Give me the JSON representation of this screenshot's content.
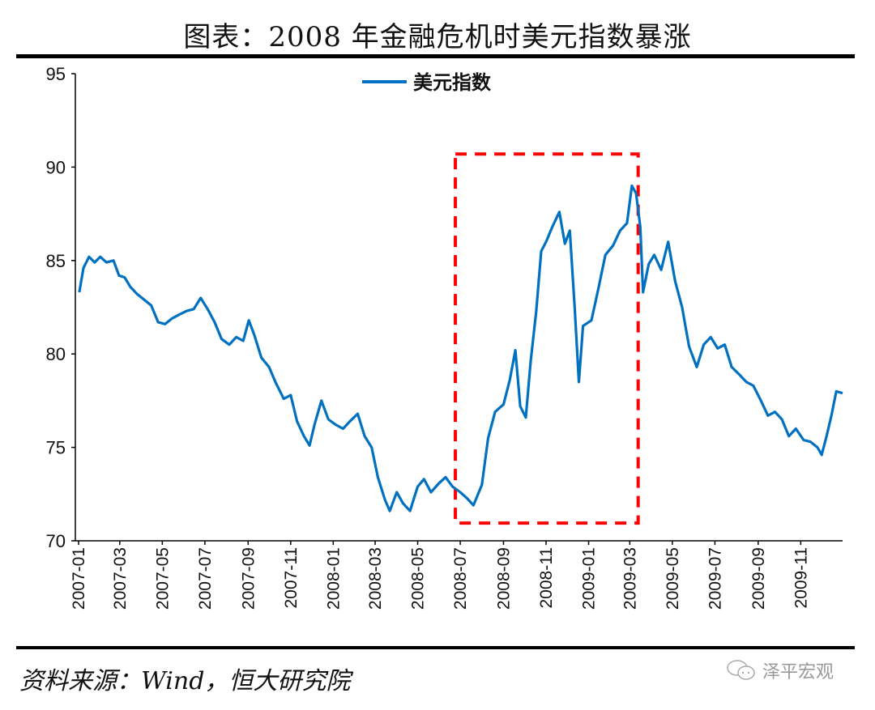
{
  "title": "图表：2008 年金融危机时美元指数暴涨",
  "source": "资料来源：Wind，恒大研究院",
  "watermark": "泽平宏观",
  "chart_data": {
    "type": "line",
    "title": "图表：2008 年金融危机时美元指数暴涨",
    "xlabel": "",
    "ylabel": "",
    "ylim": [
      70,
      95
    ],
    "yticks": [
      "70",
      "75",
      "80",
      "85",
      "90",
      "95"
    ],
    "xlim": [
      "2007-01-01",
      "2009-12-31"
    ],
    "xticks": [
      "2007-01",
      "2007-03",
      "2007-05",
      "2007-07",
      "2007-09",
      "2007-11",
      "2008-01",
      "2008-03",
      "2008-05",
      "2008-07",
      "2008-09",
      "2008-11",
      "2009-01",
      "2009-03",
      "2009-05",
      "2009-07",
      "2009-09",
      "2009-11"
    ],
    "grid": false,
    "legend_placement": "top-center",
    "colors": {
      "series": "#0070C0",
      "highlight_box": "#FF0000"
    },
    "highlight_box": {
      "x": [
        "2008-06-24",
        "2009-03-13"
      ],
      "y": [
        70.95,
        90.7
      ],
      "style": "dashed"
    },
    "series": [
      {
        "name": "美元指数",
        "points": [
          [
            "2007-01-02",
            83.3
          ],
          [
            "2007-01-08",
            84.6
          ],
          [
            "2007-01-16",
            85.2
          ],
          [
            "2007-01-24",
            84.9
          ],
          [
            "2007-02-01",
            85.2
          ],
          [
            "2007-02-10",
            84.9
          ],
          [
            "2007-02-20",
            85.0
          ],
          [
            "2007-02-28",
            84.2
          ],
          [
            "2007-03-08",
            84.1
          ],
          [
            "2007-03-16",
            83.6
          ],
          [
            "2007-03-26",
            83.2
          ],
          [
            "2007-04-05",
            82.9
          ],
          [
            "2007-04-15",
            82.6
          ],
          [
            "2007-04-25",
            81.7
          ],
          [
            "2007-05-05",
            81.6
          ],
          [
            "2007-05-15",
            81.9
          ],
          [
            "2007-05-25",
            82.1
          ],
          [
            "2007-06-05",
            82.3
          ],
          [
            "2007-06-15",
            82.4
          ],
          [
            "2007-06-25",
            83.0
          ],
          [
            "2007-07-05",
            82.4
          ],
          [
            "2007-07-15",
            81.7
          ],
          [
            "2007-07-25",
            80.8
          ],
          [
            "2007-08-05",
            80.5
          ],
          [
            "2007-08-15",
            80.9
          ],
          [
            "2007-08-25",
            80.7
          ],
          [
            "2007-09-02",
            81.8
          ],
          [
            "2007-09-10",
            81.0
          ],
          [
            "2007-09-20",
            79.8
          ],
          [
            "2007-10-01",
            79.3
          ],
          [
            "2007-10-10",
            78.5
          ],
          [
            "2007-10-22",
            77.6
          ],
          [
            "2007-11-01",
            77.8
          ],
          [
            "2007-11-10",
            76.4
          ],
          [
            "2007-11-20",
            75.6
          ],
          [
            "2007-11-28",
            75.1
          ],
          [
            "2007-12-05",
            76.2
          ],
          [
            "2007-12-15",
            77.5
          ],
          [
            "2007-12-25",
            76.5
          ],
          [
            "2008-01-05",
            76.2
          ],
          [
            "2008-01-15",
            76.0
          ],
          [
            "2008-01-25",
            76.4
          ],
          [
            "2008-02-05",
            76.8
          ],
          [
            "2008-02-15",
            75.6
          ],
          [
            "2008-02-25",
            75.0
          ],
          [
            "2008-03-05",
            73.4
          ],
          [
            "2008-03-15",
            72.2
          ],
          [
            "2008-03-22",
            71.6
          ],
          [
            "2008-04-01",
            72.6
          ],
          [
            "2008-04-10",
            72.0
          ],
          [
            "2008-04-20",
            71.6
          ],
          [
            "2008-05-01",
            72.9
          ],
          [
            "2008-05-10",
            73.3
          ],
          [
            "2008-05-20",
            72.6
          ],
          [
            "2008-06-01",
            73.1
          ],
          [
            "2008-06-10",
            73.4
          ],
          [
            "2008-06-20",
            72.9
          ],
          [
            "2008-07-01",
            72.6
          ],
          [
            "2008-07-10",
            72.3
          ],
          [
            "2008-07-20",
            71.9
          ],
          [
            "2008-08-01",
            73.0
          ],
          [
            "2008-08-10",
            75.5
          ],
          [
            "2008-08-20",
            76.9
          ],
          [
            "2008-09-01",
            77.3
          ],
          [
            "2008-09-10",
            78.6
          ],
          [
            "2008-09-18",
            80.2
          ],
          [
            "2008-09-25",
            77.2
          ],
          [
            "2008-10-03",
            76.6
          ],
          [
            "2008-10-10",
            79.6
          ],
          [
            "2008-10-18",
            82.3
          ],
          [
            "2008-10-25",
            85.5
          ],
          [
            "2008-11-01",
            86.0
          ],
          [
            "2008-11-10",
            86.8
          ],
          [
            "2008-11-20",
            87.6
          ],
          [
            "2008-11-28",
            85.9
          ],
          [
            "2008-12-05",
            86.6
          ],
          [
            "2008-12-12",
            82.5
          ],
          [
            "2008-12-18",
            78.5
          ],
          [
            "2008-12-24",
            81.5
          ],
          [
            "2009-01-05",
            81.8
          ],
          [
            "2009-01-15",
            83.5
          ],
          [
            "2009-01-25",
            85.3
          ],
          [
            "2009-02-05",
            85.8
          ],
          [
            "2009-02-15",
            86.6
          ],
          [
            "2009-02-25",
            87.0
          ],
          [
            "2009-03-04",
            89.0
          ],
          [
            "2009-03-10",
            88.6
          ],
          [
            "2009-03-16",
            86.8
          ],
          [
            "2009-03-20",
            83.3
          ],
          [
            "2009-03-28",
            84.8
          ],
          [
            "2009-04-05",
            85.3
          ],
          [
            "2009-04-15",
            84.5
          ],
          [
            "2009-04-25",
            86.0
          ],
          [
            "2009-05-05",
            83.9
          ],
          [
            "2009-05-15",
            82.5
          ],
          [
            "2009-05-25",
            80.4
          ],
          [
            "2009-06-05",
            79.3
          ],
          [
            "2009-06-15",
            80.5
          ],
          [
            "2009-06-25",
            80.9
          ],
          [
            "2009-07-05",
            80.3
          ],
          [
            "2009-07-15",
            80.5
          ],
          [
            "2009-07-25",
            79.3
          ],
          [
            "2009-08-05",
            78.9
          ],
          [
            "2009-08-15",
            78.5
          ],
          [
            "2009-08-25",
            78.3
          ],
          [
            "2009-09-05",
            77.5
          ],
          [
            "2009-09-15",
            76.7
          ],
          [
            "2009-09-25",
            76.9
          ],
          [
            "2009-10-05",
            76.5
          ],
          [
            "2009-10-15",
            75.6
          ],
          [
            "2009-10-25",
            76.0
          ],
          [
            "2009-11-05",
            75.4
          ],
          [
            "2009-11-15",
            75.3
          ],
          [
            "2009-11-25",
            75.0
          ],
          [
            "2009-12-01",
            74.6
          ],
          [
            "2009-12-08",
            75.6
          ],
          [
            "2009-12-15",
            76.7
          ],
          [
            "2009-12-22",
            78.0
          ],
          [
            "2009-12-31",
            77.9
          ]
        ]
      }
    ]
  }
}
